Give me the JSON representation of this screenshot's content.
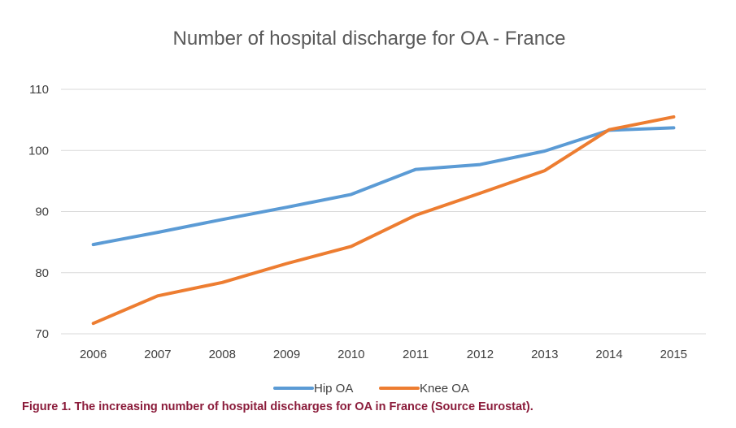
{
  "chart_data": {
    "type": "line",
    "title": "Number of hospital discharge for OA - France",
    "categories": [
      "2006",
      "2007",
      "2008",
      "2009",
      "2010",
      "2011",
      "2012",
      "2013",
      "2014",
      "2015"
    ],
    "series": [
      {
        "name": "Hip OA",
        "color": "#5b9bd5",
        "values": [
          84.6,
          86.6,
          88.7,
          90.7,
          92.8,
          96.9,
          97.7,
          99.9,
          103.3,
          103.7
        ]
      },
      {
        "name": "Knee OA",
        "color": "#ed7d31",
        "values": [
          71.7,
          76.2,
          78.4,
          81.5,
          84.3,
          89.4,
          93.0,
          96.7,
          103.4,
          105.5
        ]
      }
    ],
    "yticks": [
      70,
      80,
      90,
      100,
      110
    ],
    "ylim": [
      70,
      110
    ],
    "xlabel": "",
    "ylabel": "",
    "grid": true,
    "legend_position": "bottom"
  },
  "caption": "Figure 1. The increasing number of hospital discharges for OA in France  (Source Eurostat)."
}
